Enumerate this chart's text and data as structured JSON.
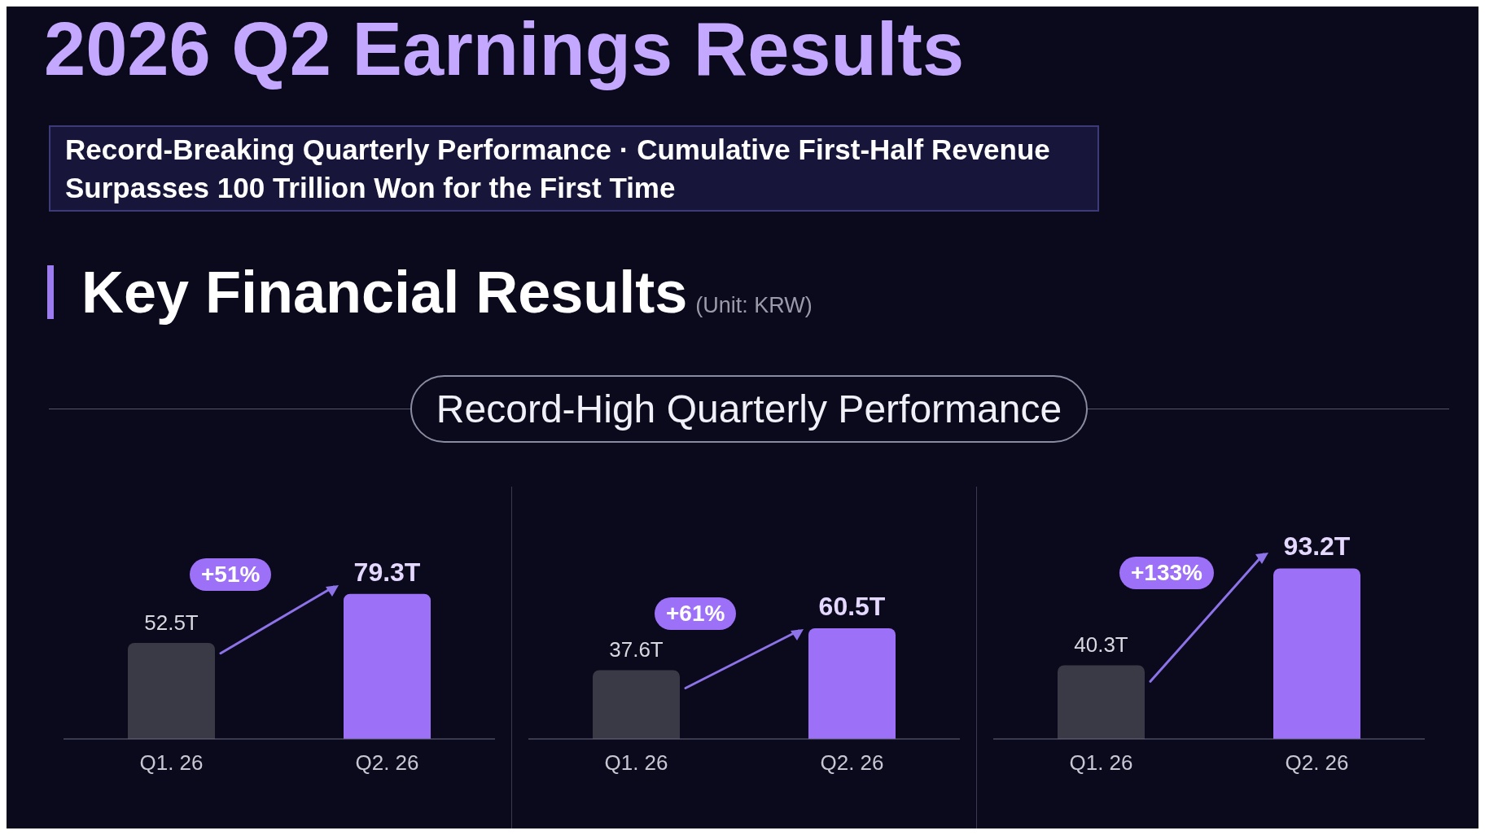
{
  "chart_data": [
    {
      "type": "bar",
      "title": "2026 Q2 Earnings Results",
      "subtitle": "Record-Breaking Quarterly Performance · Cumulative First-Half Revenue Surpasses 100 Trillion Won for the First Time",
      "annotations": [
        "Key Financial Results",
        "(Unit: KRW)",
        "Record-High Quarterly Performance",
        "+51%"
      ],
      "categories": [
        "Q1. 26",
        "Q2. 26"
      ],
      "values": [
        52.5,
        79.3
      ],
      "value_labels": [
        "52.5T",
        "79.3T"
      ],
      "colors": [
        "#3a3a46",
        "#9d70f8"
      ]
    },
    {
      "type": "bar",
      "annotations": [
        "+61%"
      ],
      "categories": [
        "Q1. 26",
        "Q2. 26"
      ],
      "values": [
        37.6,
        60.5
      ],
      "value_labels": [
        "37.6T",
        "60.5T"
      ],
      "colors": [
        "#3a3a46",
        "#9d70f8"
      ]
    },
    {
      "type": "bar",
      "annotations": [
        "+133%"
      ],
      "categories": [
        "Q1. 26",
        "Q2. 26"
      ],
      "values": [
        40.3,
        93.2
      ],
      "value_labels": [
        "40.3T",
        "93.2T"
      ],
      "colors": [
        "#3a3a46",
        "#9d70f8"
      ]
    }
  ]
}
